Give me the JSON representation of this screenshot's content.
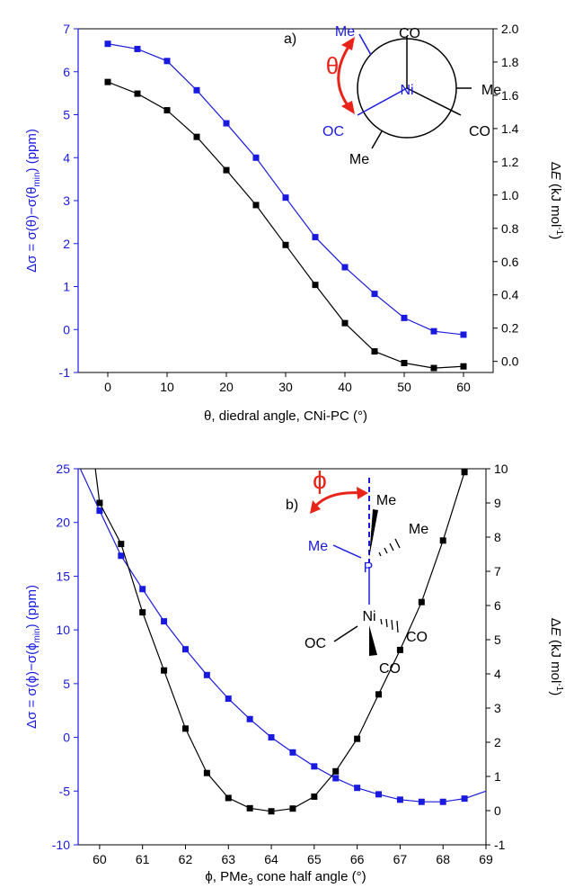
{
  "colors": {
    "blue": "#1a1adf",
    "black": "#000000",
    "red": "#e8231a"
  },
  "chart_data": [
    {
      "type": "line",
      "panel_label": "a)",
      "xlabel": "θ, diedral angle, CNi-PC (°)",
      "ylabel_left": "Δσ = σ(θ)−σ(θmin) (ppm)",
      "ylabel_left_parts": {
        "main": "Δσ = σ(θ)−σ(θ",
        "sub": "min",
        "tail": ") (ppm)"
      },
      "ylabel_right_parts": {
        "pre": "Δ",
        "italic": "E",
        "mid": " (kJ mol",
        "sup": "-1",
        "tail": ")"
      },
      "xlim": [
        -5,
        65
      ],
      "ylim_left": [
        -1,
        7
      ],
      "ylim_right": [
        -0.0667,
        2.0
      ],
      "x_ticks": [
        "0",
        "10",
        "20",
        "30",
        "40",
        "50",
        "60"
      ],
      "y_left_ticks": [
        "-1",
        "0",
        "1",
        "2",
        "3",
        "4",
        "5",
        "6",
        "7"
      ],
      "y_right_ticks": [
        "0.0",
        "0.2",
        "0.4",
        "0.6",
        "0.8",
        "1.0",
        "1.2",
        "1.4",
        "1.6",
        "1.8",
        "2.0"
      ],
      "series": [
        {
          "axis": "left",
          "color": "#1a1adf",
          "x": [
            0,
            5,
            10,
            15,
            20,
            25,
            30,
            35,
            40,
            45,
            50,
            55,
            60
          ],
          "y": [
            6.65,
            6.53,
            6.25,
            5.57,
            4.8,
            4.0,
            3.07,
            2.15,
            1.45,
            0.83,
            0.27,
            -0.04,
            -0.12
          ]
        },
        {
          "axis": "right",
          "color": "#000000",
          "x": [
            0,
            5,
            10,
            15,
            20,
            25,
            30,
            35,
            40,
            45,
            50,
            55,
            60
          ],
          "y": [
            1.68,
            1.61,
            1.51,
            1.35,
            1.15,
            0.94,
            0.7,
            0.46,
            0.23,
            0.06,
            -0.01,
            -0.04,
            -0.03
          ]
        }
      ],
      "inset": {
        "labels": [
          "Me",
          "CO",
          "Me",
          "Ni",
          "OC",
          "CO",
          "Me"
        ],
        "angle_symbol": "θ"
      }
    },
    {
      "type": "line",
      "panel_label": "b)",
      "xlabel": "ϕ, PMe3 cone half angle (°)",
      "xlabel_parts": {
        "main": "ϕ, PMe",
        "sub": "3",
        "tail": " cone half angle (°)"
      },
      "ylabel_left": "Δσ = σ(ϕ)−σ(ϕmin) (ppm)",
      "ylabel_left_parts": {
        "main": "Δσ = σ(ϕ)−σ(ϕ",
        "sub": "min",
        "tail": ") (ppm)"
      },
      "ylabel_right_parts": {
        "pre": "Δ",
        "italic": "E",
        "mid": " (kJ mol",
        "sup": "-1",
        "tail": ")"
      },
      "xlim": [
        59.5,
        69
      ],
      "ylim_left": [
        -10,
        25
      ],
      "ylim_right": [
        -1,
        10
      ],
      "x_ticks": [
        "60",
        "61",
        "62",
        "63",
        "64",
        "65",
        "66",
        "67",
        "68",
        "69"
      ],
      "y_left_ticks": [
        "-10",
        "-5",
        "0",
        "5",
        "10",
        "15",
        "20",
        "25"
      ],
      "y_right_ticks": [
        "-1",
        "0",
        "1",
        "2",
        "3",
        "4",
        "5",
        "6",
        "7",
        "8",
        "9",
        "10"
      ],
      "series": [
        {
          "axis": "left",
          "color": "#1a1adf",
          "x": [
            60.0,
            60.5,
            61.0,
            61.5,
            62.0,
            62.5,
            63.0,
            63.5,
            64.0,
            64.5,
            65.0,
            65.5,
            66.0,
            66.5,
            67.0,
            67.5,
            68.0,
            68.5
          ],
          "y": [
            21.1,
            16.9,
            13.8,
            10.8,
            8.2,
            5.8,
            3.6,
            1.7,
            0.0,
            -1.4,
            -2.7,
            -3.8,
            -4.7,
            -5.3,
            -5.8,
            -6.0,
            -6.0,
            -5.7
          ]
        },
        {
          "axis": "right",
          "color": "#000000",
          "x": [
            60.0,
            60.5,
            61.0,
            61.5,
            62.0,
            62.5,
            63.0,
            63.5,
            64.0,
            64.5,
            65.0,
            65.5,
            66.0,
            66.5,
            67.0,
            67.5,
            68.0,
            68.5
          ],
          "y": [
            9.0,
            7.8,
            5.8,
            4.1,
            2.4,
            1.1,
            0.37,
            0.07,
            -0.02,
            0.06,
            0.41,
            1.15,
            2.1,
            3.4,
            4.7,
            6.1,
            7.9,
            9.9
          ]
        }
      ],
      "inset": {
        "labels": [
          "Me",
          "Me",
          "Me",
          "P",
          "Ni",
          "OC",
          "CO",
          "CO"
        ],
        "angle_symbol": "ϕ"
      }
    }
  ]
}
